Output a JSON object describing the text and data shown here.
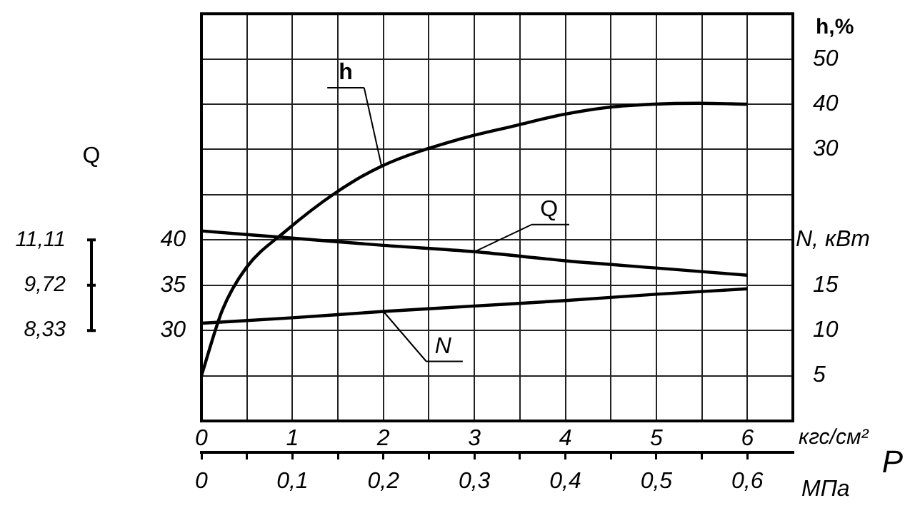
{
  "chart_data": {
    "type": "line",
    "xlabel": "кгс/см²",
    "x2label": "МПа",
    "ylabel": "Q",
    "y2label": "N, кВт",
    "y3label": "h,%",
    "annotations": [
      "P",
      "11,11",
      "9,72",
      "8,33"
    ],
    "x": [
      0,
      1,
      2,
      3,
      4,
      5,
      6
    ],
    "xlim": [
      0,
      6.5
    ],
    "xticks": [
      0,
      {
        "value": 0.5,
        "label": null
      },
      1,
      {
        "value": 1.5,
        "label": null
      },
      2,
      {
        "value": 2.5,
        "label": null
      },
      3,
      {
        "value": 3.5,
        "label": null
      },
      4,
      {
        "value": 4.5,
        "label": null
      },
      5,
      {
        "value": 5.5,
        "label": null
      },
      6
    ],
    "x2lim": [
      0,
      0.65
    ],
    "x2ticks": [
      0,
      {
        "value": 0.05,
        "label": null
      },
      {
        "value": 0.1,
        "label": "0,1"
      },
      {
        "value": 0.15,
        "label": null
      },
      {
        "value": 0.2,
        "label": "0,2"
      },
      {
        "value": 0.25,
        "label": null
      },
      {
        "value": 0.3,
        "label": "0,3"
      },
      {
        "value": 0.35,
        "label": null
      },
      {
        "value": 0.4,
        "label": "0,4"
      },
      {
        "value": 0.45,
        "label": null
      },
      {
        "value": 0.5,
        "label": "0,5"
      },
      {
        "value": 0.55,
        "label": null
      },
      {
        "value": 0.6,
        "label": "0,6"
      }
    ],
    "ylim": [
      20,
      65
    ],
    "yticks": [
      30,
      35,
      40
    ],
    "y2lim": [
      0,
      45
    ],
    "y2ticks": [
      {
        "value": 0,
        "label": null
      },
      5,
      10,
      15,
      {
        "value": 20,
        "label": null
      },
      {
        "value": 25,
        "label": null
      },
      {
        "value": 30,
        "label": null
      },
      {
        "value": 35,
        "label": null
      },
      {
        "value": 40,
        "label": null
      },
      {
        "value": 45,
        "label": null
      }
    ],
    "y3lim": [
      -30,
      60
    ],
    "y3ticks": [
      30,
      40,
      50
    ],
    "grid": true,
    "marker": "none",
    "line_style": "solid",
    "series": [
      {
        "name": "h",
        "color": "#000000",
        "axis": "y3",
        "x": [
          0,
          0.23,
          0.49,
          0.91,
          1.48,
          1.98,
          2.79,
          3.46,
          3.97,
          4.47,
          4.97,
          5.47,
          6
        ],
        "values": [
          -20,
          -5.5,
          3.8,
          11.7,
          20.5,
          26.3,
          32,
          35.3,
          37.7,
          39.3,
          40,
          40.2,
          40
        ]
      },
      {
        "name": "Q",
        "color": "#000000",
        "values": [
          41,
          40.2,
          39.4,
          38.7,
          37.7,
          36.9,
          36.1
        ]
      },
      {
        "name": "N",
        "color": "#000000",
        "axis": "y2",
        "values": [
          10.8,
          11.4,
          12.1,
          12.7,
          13.3,
          14,
          14.6
        ]
      }
    ]
  }
}
